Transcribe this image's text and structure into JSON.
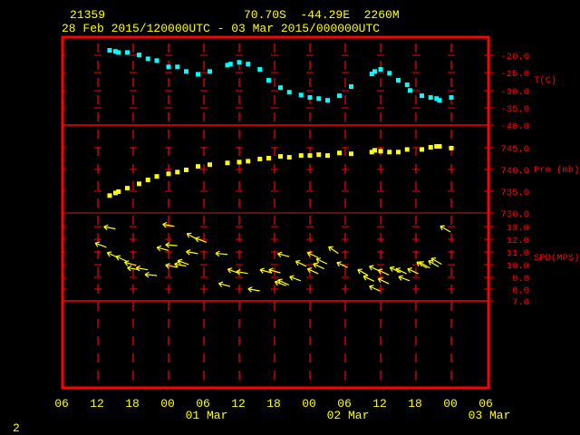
{
  "header": {
    "station_id": "21359",
    "location": "70.70S  -44.29E  2260M",
    "period": "28 Feb 2015/120000UTC - 03 Mar 2015/000000UTC"
  },
  "page_number": "2",
  "colors": {
    "frame": "#ff0000",
    "temperature": "#00ffff",
    "pressure": "#ffff00",
    "wind": "#ffff00",
    "text": "#ffff00",
    "axis_text": "#ff0000",
    "background": "#000000"
  },
  "x_axis": {
    "range": [
      "2015-02-28 06:00",
      "2015-03-03 06:00"
    ],
    "tick_labels": [
      "06",
      "12",
      "18",
      "00",
      "06",
      "12",
      "18",
      "00",
      "06",
      "12",
      "18",
      "00",
      "06"
    ],
    "date_labels": [
      "01 Mar",
      "02 Mar",
      "03 Mar"
    ]
  },
  "chart_data": [
    {
      "type": "scatter",
      "ylabel": "T(C)",
      "ylim": [
        -40,
        -15
      ],
      "ytick_labels": [
        "-20.0",
        "-25.0",
        "-30.0",
        "-35.0",
        "-40.0"
      ],
      "points": [
        [
          "2015-02-28 14:00",
          -18.6
        ],
        [
          "2015-02-28 15:00",
          -18.9
        ],
        [
          "2015-02-28 15:30",
          -19.2
        ],
        [
          "2015-02-28 17:00",
          -19.2
        ],
        [
          "2015-02-28 19:00",
          -19.9
        ],
        [
          "2015-02-28 20:30",
          -21.0
        ],
        [
          "2015-02-28 22:00",
          -21.5
        ],
        [
          "2015-03-01 00:00",
          -23.3
        ],
        [
          "2015-03-01 01:30",
          -23.3
        ],
        [
          "2015-03-01 03:00",
          -24.6
        ],
        [
          "2015-03-01 05:00",
          -25.4
        ],
        [
          "2015-03-01 07:00",
          -24.6
        ],
        [
          "2015-03-01 10:00",
          -22.8
        ],
        [
          "2015-03-01 10:30",
          -22.5
        ],
        [
          "2015-03-01 12:00",
          -22.0
        ],
        [
          "2015-03-01 13:30",
          -22.5
        ],
        [
          "2015-03-01 15:30",
          -24.0
        ],
        [
          "2015-03-01 17:00",
          -27.1
        ],
        [
          "2015-03-01 19:00",
          -29.2
        ],
        [
          "2015-03-01 20:30",
          -30.5
        ],
        [
          "2015-03-01 22:30",
          -31.3
        ],
        [
          "2015-03-02 00:00",
          -32.0
        ],
        [
          "2015-03-02 01:30",
          -32.3
        ],
        [
          "2015-03-02 03:00",
          -32.8
        ],
        [
          "2015-03-02 05:00",
          -31.5
        ],
        [
          "2015-03-02 07:00",
          -28.9
        ],
        [
          "2015-03-02 10:30",
          -25.3
        ],
        [
          "2015-03-02 11:00",
          -24.6
        ],
        [
          "2015-03-02 12:00",
          -24.0
        ],
        [
          "2015-03-02 13:30",
          -25.1
        ],
        [
          "2015-03-02 15:00",
          -27.1
        ],
        [
          "2015-03-02 16:30",
          -28.4
        ],
        [
          "2015-03-02 17:00",
          -30.0
        ],
        [
          "2015-03-02 19:00",
          -31.5
        ],
        [
          "2015-03-02 20:30",
          -32.0
        ],
        [
          "2015-03-02 21:30",
          -32.3
        ],
        [
          "2015-03-02 22:00",
          -32.8
        ],
        [
          "2015-03-03 00:00",
          -32.0
        ]
      ]
    },
    {
      "type": "scatter",
      "ylabel": "Pre (mb)",
      "ylim": [
        730,
        750
      ],
      "ytick_labels": [
        "745.0",
        "740.0",
        "735.0",
        "730.0"
      ],
      "points": [
        [
          "2015-02-28 14:00",
          734.0
        ],
        [
          "2015-02-28 15:00",
          734.6
        ],
        [
          "2015-02-28 15:30",
          734.9
        ],
        [
          "2015-02-28 17:00",
          735.7
        ],
        [
          "2015-02-28 19:00",
          736.7
        ],
        [
          "2015-02-28 20:30",
          737.6
        ],
        [
          "2015-02-28 22:00",
          738.4
        ],
        [
          "2015-03-01 00:00",
          739.0
        ],
        [
          "2015-03-01 01:30",
          739.4
        ],
        [
          "2015-03-01 03:00",
          739.9
        ],
        [
          "2015-03-01 05:00",
          740.7
        ],
        [
          "2015-03-01 07:00",
          741.1
        ],
        [
          "2015-03-01 10:00",
          741.5
        ],
        [
          "2015-03-01 12:00",
          741.7
        ],
        [
          "2015-03-01 13:30",
          741.9
        ],
        [
          "2015-03-01 15:30",
          742.4
        ],
        [
          "2015-03-01 17:00",
          742.6
        ],
        [
          "2015-03-01 19:00",
          743.0
        ],
        [
          "2015-03-01 20:30",
          742.8
        ],
        [
          "2015-03-01 22:30",
          743.2
        ],
        [
          "2015-03-02 00:00",
          743.2
        ],
        [
          "2015-03-02 01:30",
          743.4
        ],
        [
          "2015-03-02 03:00",
          743.2
        ],
        [
          "2015-03-02 05:00",
          743.8
        ],
        [
          "2015-03-02 07:00",
          743.6
        ],
        [
          "2015-03-02 10:30",
          744.0
        ],
        [
          "2015-03-02 11:00",
          744.4
        ],
        [
          "2015-03-02 12:00",
          744.2
        ],
        [
          "2015-03-02 13:30",
          744.0
        ],
        [
          "2015-03-02 15:00",
          744.0
        ],
        [
          "2015-03-02 16:30",
          744.6
        ],
        [
          "2015-03-02 19:00",
          744.6
        ],
        [
          "2015-03-02 20:30",
          745.1
        ],
        [
          "2015-03-02 21:30",
          745.3
        ],
        [
          "2015-03-02 22:00",
          745.3
        ],
        [
          "2015-03-03 00:00",
          744.9
        ]
      ]
    },
    {
      "type": "scatter",
      "mark": "wind-arrow",
      "ylabel": "SPD(MPS)",
      "ylim": [
        7,
        14.1
      ],
      "ytick_labels": [
        "13.0",
        "12.0",
        "11.0",
        "10.0",
        "9.0",
        "8.0",
        "7.0"
      ],
      "fields": [
        "time",
        "speed_mps",
        "direction_from_deg"
      ],
      "points": [
        [
          "2015-02-28 14:00",
          12.9,
          100
        ],
        [
          "2015-03-01 00:00",
          13.1,
          100
        ],
        [
          "2015-03-01 04:00",
          12.2,
          120
        ],
        [
          "2015-03-01 05:30",
          11.9,
          110
        ],
        [
          "2015-02-28 12:30",
          11.5,
          110
        ],
        [
          "2015-03-01 00:30",
          11.5,
          95
        ],
        [
          "2015-02-28 23:00",
          11.2,
          105
        ],
        [
          "2015-02-28 14:30",
          10.7,
          115
        ],
        [
          "2015-02-28 16:00",
          10.4,
          115
        ],
        [
          "2015-03-01 04:00",
          10.9,
          100
        ],
        [
          "2015-03-01 09:00",
          10.8,
          95
        ],
        [
          "2015-02-28 17:30",
          10.0,
          105
        ],
        [
          "2015-02-28 18:00",
          9.6,
          100
        ],
        [
          "2015-02-28 19:30",
          9.6,
          100
        ],
        [
          "2015-02-28 21:00",
          9.1,
          95
        ],
        [
          "2015-03-01 00:30",
          9.8,
          100
        ],
        [
          "2015-03-01 02:30",
          10.1,
          110
        ],
        [
          "2015-03-01 02:00",
          9.9,
          100
        ],
        [
          "2015-03-01 11:00",
          9.4,
          110
        ],
        [
          "2015-03-01 12:30",
          9.3,
          100
        ],
        [
          "2015-03-01 16:30",
          9.4,
          105
        ],
        [
          "2015-03-01 18:00",
          9.4,
          105
        ],
        [
          "2015-03-01 09:30",
          8.3,
          105
        ],
        [
          "2015-03-01 14:30",
          7.9,
          100
        ],
        [
          "2015-03-01 19:00",
          8.4,
          110
        ],
        [
          "2015-03-01 19:30",
          10.7,
          105
        ],
        [
          "2015-03-02 00:30",
          10.7,
          115
        ],
        [
          "2015-03-02 04:00",
          11.1,
          125
        ],
        [
          "2015-03-01 22:30",
          10.0,
          115
        ],
        [
          "2015-03-02 02:00",
          10.2,
          115
        ],
        [
          "2015-03-02 01:30",
          9.8,
          115
        ],
        [
          "2015-03-02 05:30",
          9.9,
          115
        ],
        [
          "2015-03-02 00:30",
          9.4,
          115
        ],
        [
          "2015-03-02 09:00",
          9.3,
          120
        ],
        [
          "2015-03-02 11:00",
          9.6,
          115
        ],
        [
          "2015-03-02 12:30",
          9.3,
          115
        ],
        [
          "2015-03-02 14:30",
          9.5,
          115
        ],
        [
          "2015-03-02 15:30",
          9.4,
          115
        ],
        [
          "2015-03-02 17:30",
          9.4,
          115
        ],
        [
          "2015-03-02 19:00",
          9.9,
          120
        ],
        [
          "2015-03-02 19:30",
          9.9,
          120
        ],
        [
          "2015-03-02 21:00",
          10.0,
          120
        ],
        [
          "2015-03-02 21:30",
          10.2,
          120
        ],
        [
          "2015-03-01 21:30",
          8.8,
          110
        ],
        [
          "2015-03-02 10:00",
          8.8,
          115
        ],
        [
          "2015-03-02 12:30",
          8.6,
          115
        ],
        [
          "2015-03-02 16:00",
          8.8,
          110
        ],
        [
          "2015-03-01 19:30",
          8.5,
          115
        ],
        [
          "2015-03-02 11:00",
          8.0,
          115
        ],
        [
          "2015-03-02 23:00",
          12.8,
          120
        ]
      ]
    }
  ]
}
